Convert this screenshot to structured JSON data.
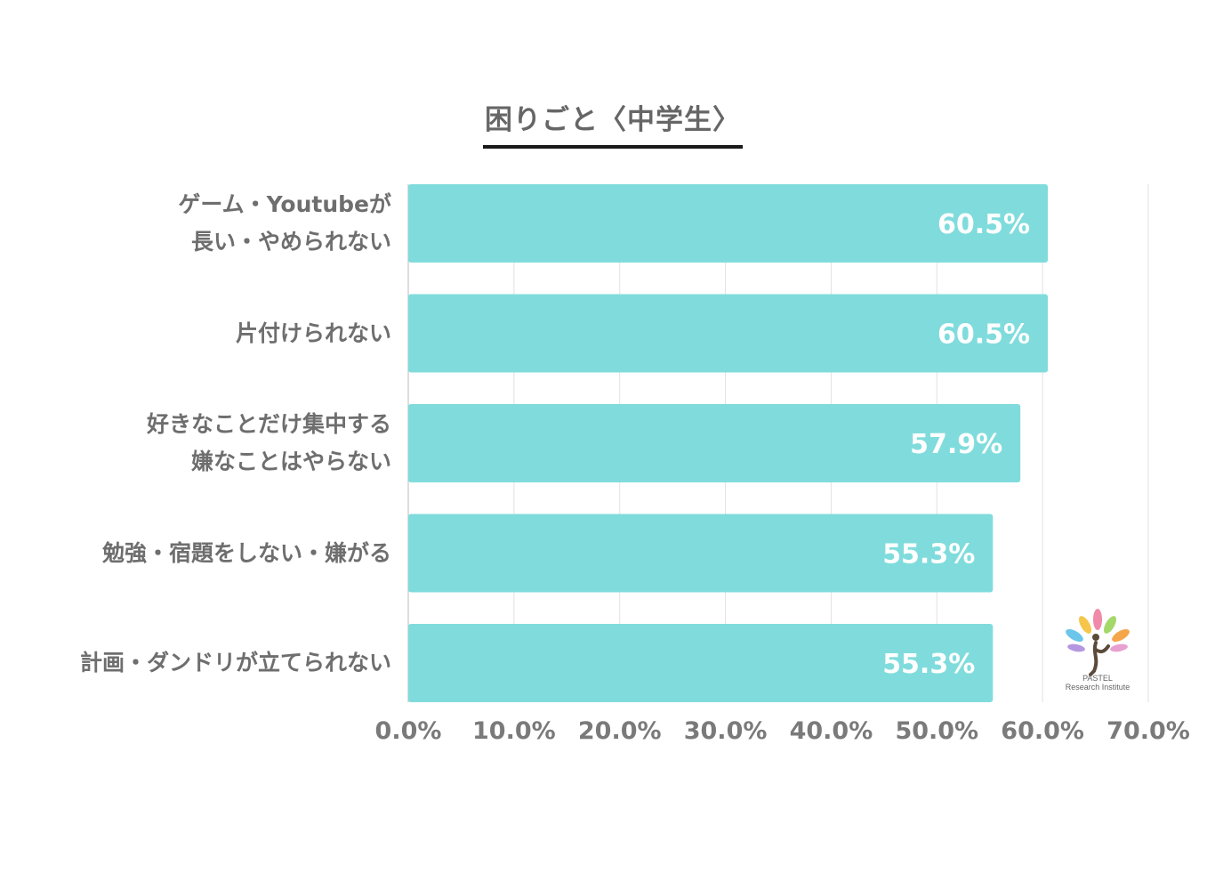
{
  "chart_data": {
    "type": "bar",
    "orientation": "horizontal",
    "title": "困りごと〈中学生〉",
    "categories": [
      [
        "ゲーム・Youtubeが",
        "長い・やめられない"
      ],
      [
        "片付けられない"
      ],
      [
        "好きなことだけ集中する",
        "嫌なことはやらない"
      ],
      [
        "勉強・宿題をしない・嫌がる"
      ],
      [
        "計画・ダンドリが立てられない"
      ]
    ],
    "values": [
      60.5,
      60.5,
      57.9,
      55.3,
      55.3
    ],
    "value_labels": [
      "60.5%",
      "60.5%",
      "57.9%",
      "55.3%",
      "55.3%"
    ],
    "xlim": [
      0,
      70
    ],
    "x_ticks": [
      "0.0%",
      "10.0%",
      "20.0%",
      "30.0%",
      "40.0%",
      "50.0%",
      "60.0%",
      "70.0%"
    ],
    "grid": true,
    "bar_color": "#80dcdc",
    "label_color": "#ffffff"
  },
  "logo": {
    "line1": "PASTEL",
    "line2": "Research Institute"
  }
}
